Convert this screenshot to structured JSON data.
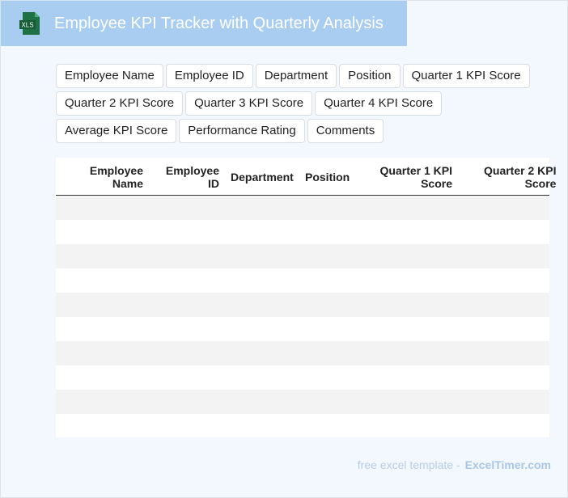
{
  "header": {
    "title": "Employee KPI Tracker with Quarterly Analysis"
  },
  "columns": [
    "Employee Name",
    "Employee ID",
    "Department",
    "Position",
    "Quarter 1 KPI Score",
    "Quarter 2 KPI Score",
    "Quarter 3 KPI Score",
    "Quarter 4 KPI Score",
    "Average KPI Score",
    "Performance Rating",
    "Comments"
  ],
  "table": {
    "headers": [
      [
        "Employee",
        "Name"
      ],
      [
        "Employee",
        "ID"
      ],
      [
        "Department"
      ],
      [
        "Position"
      ],
      [
        "Quarter 1 KPI",
        "Score"
      ],
      [
        "Quarter 2 KPI",
        "Score"
      ]
    ]
  },
  "footer": {
    "text": "free excel template -",
    "brand": "ExcelTimer.com"
  }
}
